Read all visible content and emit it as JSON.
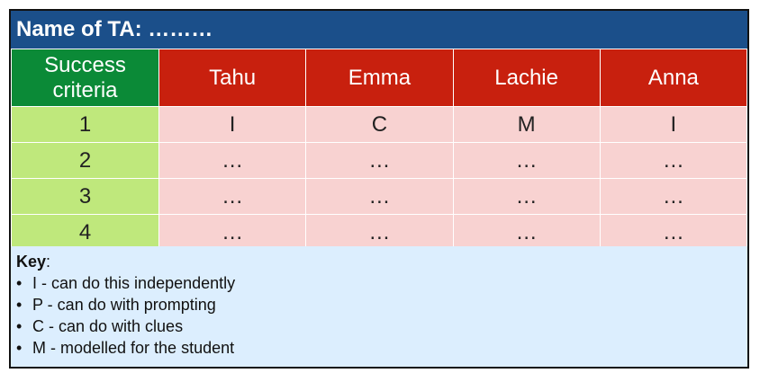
{
  "title": "Name of TA: ………",
  "table": {
    "criteria_header": [
      "Success",
      "criteria"
    ],
    "students": [
      "Tahu",
      "Emma",
      "Lachie",
      "Anna"
    ],
    "rows": [
      {
        "criterion": "1",
        "values": [
          "I",
          "C",
          "M",
          "I"
        ]
      },
      {
        "criterion": "2",
        "values": [
          "…",
          "…",
          "…",
          "…"
        ]
      },
      {
        "criterion": "3",
        "values": [
          "…",
          "…",
          "…",
          "…"
        ]
      },
      {
        "criterion": "4",
        "values": [
          "…",
          "…",
          "…",
          "…"
        ]
      }
    ]
  },
  "key": {
    "heading": "Key",
    "heading_suffix": ":",
    "bullet": "•",
    "items": [
      "I - can do this independently",
      "P - can do with prompting",
      "C - can do with clues",
      "M - modelled for the student"
    ]
  },
  "colors": {
    "title_bar": "#1b4f8a",
    "header_red": "#c8200e",
    "header_green": "#0b8a37",
    "cell_pink": "#f8d2d1",
    "cell_green": "#bfe87c",
    "key_blue": "#dceefe"
  }
}
